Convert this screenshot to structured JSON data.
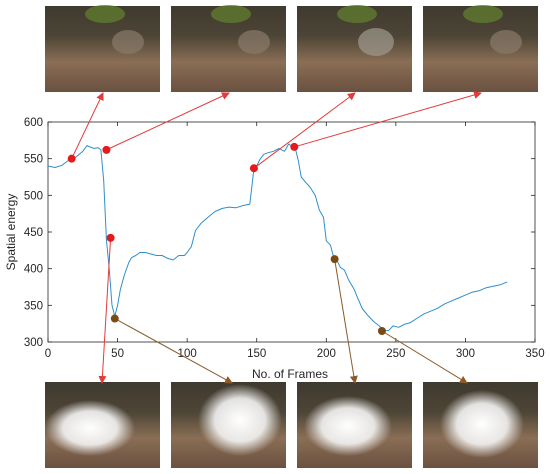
{
  "chart_data": {
    "type": "line",
    "xlabel": "No. of Frames",
    "ylabel": "Spatial energy",
    "xlim": [
      0,
      350
    ],
    "ylim": [
      300,
      600
    ],
    "xticks": [
      0,
      50,
      100,
      150,
      200,
      250,
      300,
      350
    ],
    "yticks": [
      300,
      350,
      400,
      450,
      500,
      550,
      600
    ],
    "grid": false,
    "series": [
      {
        "color": "#2f8fcf",
        "x": [
          0,
          5,
          10,
          15,
          20,
          25,
          28,
          30,
          33,
          36,
          38,
          40,
          42,
          44,
          46,
          48,
          50,
          52,
          55,
          58,
          60,
          63,
          66,
          70,
          74,
          78,
          82,
          86,
          90,
          94,
          98,
          100,
          103,
          106,
          110,
          115,
          120,
          125,
          130,
          135,
          140,
          145,
          148,
          150,
          152,
          155,
          158,
          162,
          166,
          170,
          173,
          176,
          178,
          180,
          182,
          185,
          188,
          192,
          195,
          198,
          200,
          203,
          205,
          208,
          210,
          213,
          216,
          220,
          223,
          226,
          230,
          234,
          238,
          240,
          242,
          245,
          248,
          252,
          256,
          260,
          265,
          270,
          275,
          280,
          285,
          290,
          295,
          300,
          305,
          310,
          315,
          320,
          325,
          330
        ],
        "y": [
          540,
          538,
          541,
          548,
          552,
          560,
          568,
          566,
          564,
          565,
          562,
          520,
          440,
          400,
          350,
          335,
          350,
          372,
          392,
          408,
          415,
          418,
          422,
          422,
          420,
          418,
          418,
          414,
          412,
          418,
          418,
          422,
          430,
          452,
          462,
          470,
          478,
          482,
          484,
          483,
          486,
          488,
          536,
          540,
          548,
          556,
          558,
          560,
          564,
          560,
          570,
          566,
          562,
          546,
          525,
          518,
          512,
          500,
          480,
          470,
          438,
          432,
          418,
          410,
          402,
          398,
          385,
          372,
          358,
          345,
          336,
          328,
          322,
          318,
          315,
          316,
          322,
          320,
          324,
          326,
          332,
          338,
          342,
          346,
          352,
          356,
          360,
          364,
          368,
          370,
          374,
          376,
          378,
          382
        ]
      }
    ],
    "markers": [
      {
        "x": 17,
        "y": 550,
        "color": "#e41a1c"
      },
      {
        "x": 42,
        "y": 562,
        "color": "#e41a1c"
      },
      {
        "x": 45,
        "y": 442,
        "color": "#e41a1c"
      },
      {
        "x": 48,
        "y": 332,
        "color": "#7a4a14"
      },
      {
        "x": 148,
        "y": 537,
        "color": "#e41a1c"
      },
      {
        "x": 177,
        "y": 566,
        "color": "#e41a1c"
      },
      {
        "x": 206,
        "y": 413,
        "color": "#7a4a14"
      },
      {
        "x": 240,
        "y": 315,
        "color": "#7a4a14"
      }
    ]
  }
}
